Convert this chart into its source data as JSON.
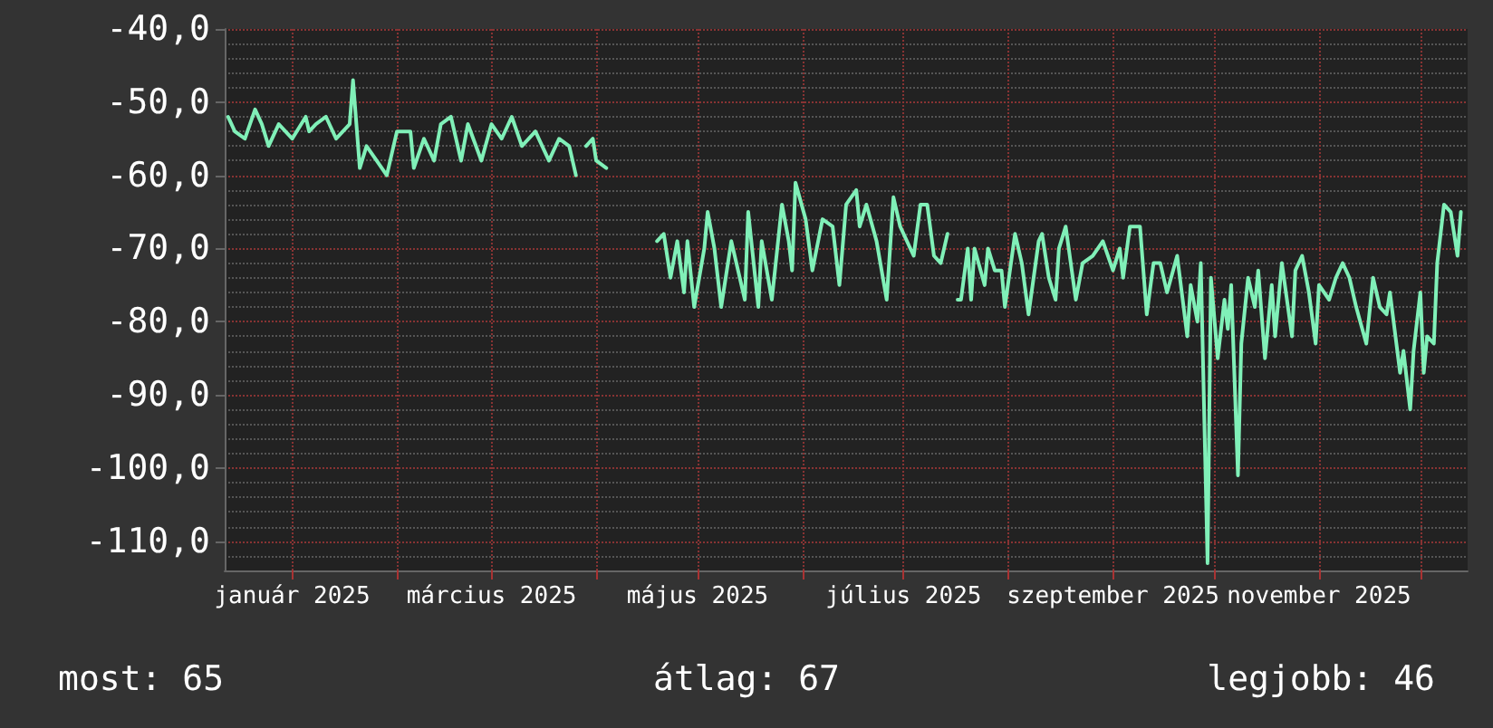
{
  "chart_data": {
    "type": "line",
    "x": [
      "2024-12-13",
      "2024-12-15",
      "2024-12-18",
      "2024-12-21",
      "2024-12-23",
      "2024-12-25",
      "2024-12-28",
      "2025-01-01",
      "2025-01-05",
      "2025-01-06",
      "2025-01-08",
      "2025-01-11",
      "2025-01-14",
      "2025-01-18",
      "2025-01-19",
      "2025-01-21",
      "2025-01-23",
      "2025-01-26",
      "2025-01-29",
      "2025-02-01",
      "2025-02-05",
      "2025-02-06",
      "2025-02-09",
      "2025-02-12",
      "2025-02-14",
      "2025-02-17",
      "2025-02-20",
      "2025-02-22",
      "2025-02-26",
      "2025-03-01",
      "2025-03-04",
      "2025-03-07",
      "2025-03-10",
      "2025-03-14",
      "2025-03-18",
      "2025-03-21",
      "2025-03-24",
      "2025-03-26",
      "2025-03-28",
      "2025-03-29",
      "2025-03-31",
      "2025-04-01",
      "2025-04-04",
      "2025-04-10",
      "2025-04-19",
      "2025-04-21",
      "2025-04-23",
      "2025-04-25",
      "2025-04-27",
      "2025-04-28",
      "2025-04-30",
      "2025-05-03",
      "2025-05-04",
      "2025-05-06",
      "2025-05-08",
      "2025-05-11",
      "2025-05-15",
      "2025-05-16",
      "2025-05-19",
      "2025-05-20",
      "2025-05-23",
      "2025-05-26",
      "2025-05-28",
      "2025-05-29",
      "2025-05-30",
      "2025-06-02",
      "2025-06-04",
      "2025-06-07",
      "2025-06-10",
      "2025-06-12",
      "2025-06-14",
      "2025-06-17",
      "2025-06-18",
      "2025-06-20",
      "2025-06-23",
      "2025-06-26",
      "2025-06-28",
      "2025-06-30",
      "2025-07-04",
      "2025-07-06",
      "2025-07-08",
      "2025-07-10",
      "2025-07-12",
      "2025-07-14",
      "2025-07-16",
      "2025-07-17",
      "2025-07-18",
      "2025-07-20",
      "2025-07-21",
      "2025-07-22",
      "2025-07-25",
      "2025-07-26",
      "2025-07-28",
      "2025-07-30",
      "2025-07-31",
      "2025-08-03",
      "2025-08-05",
      "2025-08-07",
      "2025-08-10",
      "2025-08-11",
      "2025-08-13",
      "2025-08-15",
      "2025-08-16",
      "2025-08-18",
      "2025-08-21",
      "2025-08-23",
      "2025-08-26",
      "2025-08-29",
      "2025-09-01",
      "2025-09-03",
      "2025-09-04",
      "2025-09-06",
      "2025-09-09",
      "2025-09-11",
      "2025-09-13",
      "2025-09-15",
      "2025-09-17",
      "2025-09-20",
      "2025-09-23",
      "2025-09-24",
      "2025-09-26",
      "2025-09-27",
      "2025-09-29",
      "2025-09-30",
      "2025-10-02",
      "2025-10-04",
      "2025-10-05",
      "2025-10-06",
      "2025-10-08",
      "2025-10-09",
      "2025-10-11",
      "2025-10-13",
      "2025-10-14",
      "2025-10-16",
      "2025-10-18",
      "2025-10-19",
      "2025-10-21",
      "2025-10-24",
      "2025-10-25",
      "2025-10-27",
      "2025-10-29",
      "2025-10-31",
      "2025-11-01",
      "2025-11-04",
      "2025-11-06",
      "2025-11-08",
      "2025-11-10",
      "2025-11-12",
      "2025-11-15",
      "2025-11-17",
      "2025-11-19",
      "2025-11-21",
      "2025-11-22",
      "2025-11-25",
      "2025-11-26",
      "2025-11-28",
      "2025-11-29",
      "2025-12-01",
      "2025-12-02",
      "2025-12-03",
      "2025-12-05",
      "2025-12-06",
      "2025-12-08",
      "2025-12-10",
      "2025-12-12",
      "2025-12-13"
    ],
    "series": [
      {
        "color": "#80f0b8",
        "values": [
          -52,
          -54,
          -55,
          -51,
          -53,
          -56,
          -53,
          -55,
          -52,
          -54,
          -53,
          -52,
          -55,
          -53,
          -47,
          -59,
          -56,
          -58,
          -60,
          -54,
          -54,
          -59,
          -55,
          -58,
          -53,
          -52,
          -58,
          -53,
          -58,
          -53,
          -55,
          -52,
          -56,
          -54,
          -58,
          -55,
          -56,
          -60,
          null,
          -56,
          -55,
          -58,
          -59,
          null,
          -69,
          -68,
          -74,
          -69,
          -76,
          -69,
          -78,
          -70,
          -65,
          -70,
          -78,
          -69,
          -77,
          -65,
          -78,
          -69,
          -77,
          -64,
          -69,
          -73,
          -61,
          -66,
          -73,
          -66,
          -67,
          -75,
          -64,
          -62,
          -67,
          -64,
          -69,
          -77,
          -63,
          -67,
          -71,
          -64,
          -64,
          -71,
          -72,
          -68,
          null,
          -77,
          -77,
          -70,
          -77,
          -70,
          -75,
          -70,
          -73,
          -73,
          -78,
          -68,
          -72,
          -79,
          -69,
          -68,
          -74,
          -77,
          -70,
          -67,
          -77,
          -72,
          -71,
          -69,
          -73,
          -70,
          -74,
          -67,
          -67,
          -79,
          -72,
          -72,
          -76,
          -71,
          -82,
          -75,
          -80,
          -72,
          -113,
          -74,
          -85,
          -77,
          -81,
          -75,
          -101,
          -83,
          -74,
          -78,
          -73,
          -85,
          -75,
          -82,
          -72,
          -82,
          -73,
          -71,
          -76,
          -83,
          -75,
          -77,
          -74,
          -72,
          -74,
          -78,
          -83,
          -74,
          -78,
          -79,
          -76,
          -87,
          -84,
          -92,
          -84,
          -76,
          -87,
          -82,
          -83,
          -72,
          -64,
          -65,
          -71,
          -65
        ]
      }
    ],
    "xlim": [
      "2024-12-12",
      "2025-12-15"
    ],
    "xticks": [
      {
        "value": "2025-01-01",
        "label": "január 2025"
      },
      {
        "value": "2025-02-01",
        "label": null
      },
      {
        "value": "2025-03-01",
        "label": "március 2025"
      },
      {
        "value": "2025-04-01",
        "label": null
      },
      {
        "value": "2025-05-01",
        "label": "május 2025"
      },
      {
        "value": "2025-06-01",
        "label": null
      },
      {
        "value": "2025-07-01",
        "label": "július 2025"
      },
      {
        "value": "2025-08-01",
        "label": null
      },
      {
        "value": "2025-09-01",
        "label": "szeptember 2025"
      },
      {
        "value": "2025-10-01",
        "label": null
      },
      {
        "value": "2025-11-01",
        "label": "november 2025"
      },
      {
        "value": "2025-12-01",
        "label": null
      }
    ],
    "ylim": [
      -114,
      -40
    ],
    "yticks": [
      {
        "value": -40,
        "label": "-40,0"
      },
      {
        "value": -50,
        "label": "-50,0"
      },
      {
        "value": -60,
        "label": "-60,0"
      },
      {
        "value": -70,
        "label": "-70,0"
      },
      {
        "value": -80,
        "label": "-80,0"
      },
      {
        "value": -90,
        "label": "-90,0"
      },
      {
        "value": -100,
        "label": "-100,0"
      },
      {
        "value": -110,
        "label": "-110,0"
      }
    ],
    "grid": true,
    "marker": "none",
    "line_style": "solid",
    "annotations": [
      "most: 65",
      "átlag: 67",
      "legjobb: 46"
    ]
  }
}
